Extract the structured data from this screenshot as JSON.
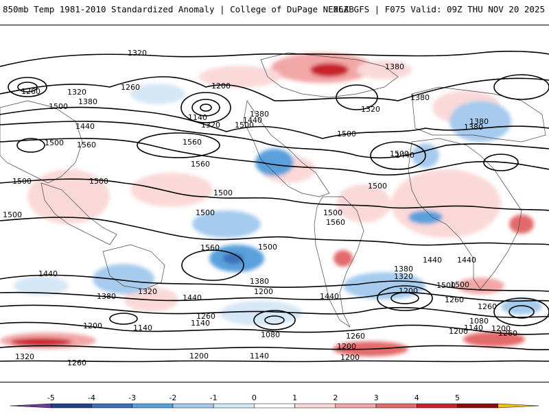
{
  "header": {
    "title_left": "850mb Temp 1981-2010 Standardized Anomaly | College of DuPage NEXLAB",
    "title_right": "06Z GFS | F075 Valid: 09Z THU NOV 20 2025"
  },
  "map": {
    "contour_labels": [
      "1320",
      "1260",
      "1320",
      "1380",
      "1260",
      "1200",
      "1380",
      "1380",
      "1320",
      "1500",
      "1140",
      "1320",
      "1500",
      "1380",
      "1440",
      "1440",
      "1500",
      "1560",
      "1560",
      "1560",
      "1500",
      "1500",
      "1500",
      "1500",
      "1500",
      "1500",
      "1500",
      "1440",
      "1560",
      "1500",
      "1560",
      "1500",
      "1500",
      "1380",
      "1320",
      "1440",
      "1380",
      "1200",
      "1320",
      "1440",
      "1200",
      "1500",
      "1440",
      "1260",
      "1260",
      "1200",
      "1140",
      "1140",
      "1080",
      "1080",
      "1260",
      "1200",
      "1200",
      "1140",
      "1200",
      "1320",
      "1260",
      "1440",
      "1380",
      "1500",
      "1260",
      "1140",
      "1200",
      "1260",
      "1200",
      "1440",
      "1380",
      "1380"
    ]
  },
  "colorbar": {
    "ticks": [
      "-5",
      "-4",
      "-3",
      "-2",
      "-1",
      "0",
      "1",
      "2",
      "3",
      "4",
      "5"
    ],
    "colors": [
      "#6a3d9a",
      "#253e8c",
      "#3e6fb8",
      "#5aa0dc",
      "#a6cbee",
      "#d6e7f6",
      "#ffffff",
      "#fbd9d9",
      "#f2a7a7",
      "#e36a6a",
      "#c8232a",
      "#8b0c0c",
      "#f2c21a"
    ]
  }
}
